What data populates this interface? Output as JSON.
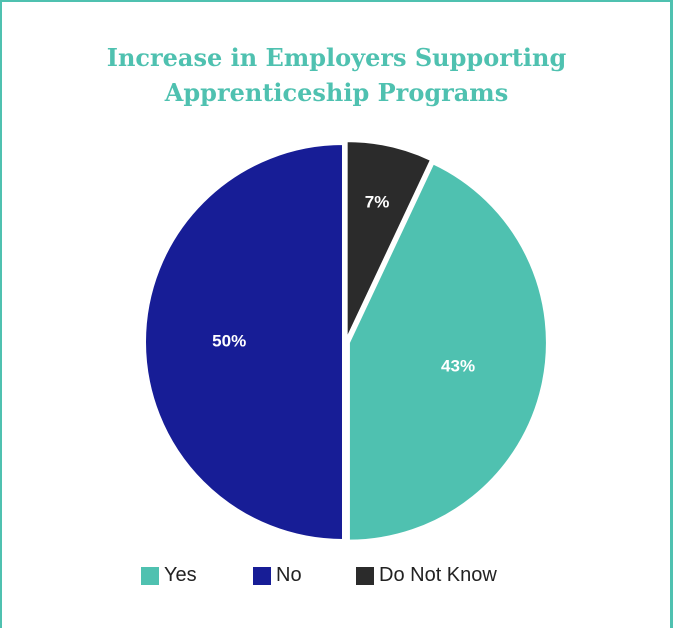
{
  "chart_data": {
    "type": "pie",
    "title_lines": [
      "Increase in Employers Supporting",
      "Apprenticeship Programs"
    ],
    "slices": [
      {
        "label": "Yes",
        "value": 43,
        "display": "43%",
        "color": "#4fc1b0"
      },
      {
        "label": "No",
        "value": 50,
        "display": "50%",
        "color": "#171d96"
      },
      {
        "label": "Do Not Know",
        "value": 7,
        "display": "7%",
        "color": "#2b2b2b"
      }
    ],
    "legend_position": "bottom",
    "accent_color": "#4fc1b0"
  }
}
